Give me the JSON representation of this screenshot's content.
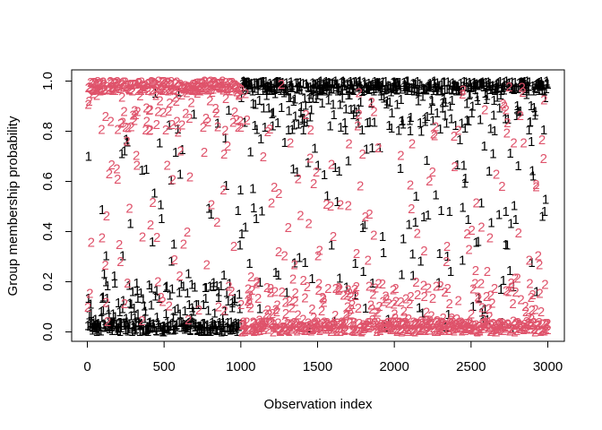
{
  "chart_data": {
    "type": "scatter",
    "title": "",
    "xlabel": "Observation index",
    "ylabel": "Group membership probability",
    "xlim": [
      0,
      3000
    ],
    "ylim": [
      0,
      1
    ],
    "xticks": [
      "0",
      "500",
      "1000",
      "1500",
      "2000",
      "2500",
      "3000"
    ],
    "yticks": [
      "0.0",
      "0.2",
      "0.4",
      "0.6",
      "0.8",
      "1.0"
    ],
    "grid": false,
    "legend": "none",
    "marker_style": "plotted-character",
    "series": [
      {
        "label": "1",
        "color": "#000000",
        "segments": [
          {
            "x_range": [
              1,
              1000
            ],
            "typical_y": 0.02,
            "description": "mostly near 0 with spread upward"
          },
          {
            "x_range": [
              1001,
              3000
            ],
            "typical_y": 0.98,
            "description": "mostly near 1 with spread downward"
          }
        ]
      },
      {
        "label": "2",
        "color": "#DF536B",
        "segments": [
          {
            "x_range": [
              1,
              1000
            ],
            "typical_y": 0.98,
            "description": "mostly near 1 with spread downward"
          },
          {
            "x_range": [
              1001,
              3000
            ],
            "typical_y": 0.02,
            "description": "mostly near 0 with spread upward"
          }
        ]
      }
    ]
  }
}
